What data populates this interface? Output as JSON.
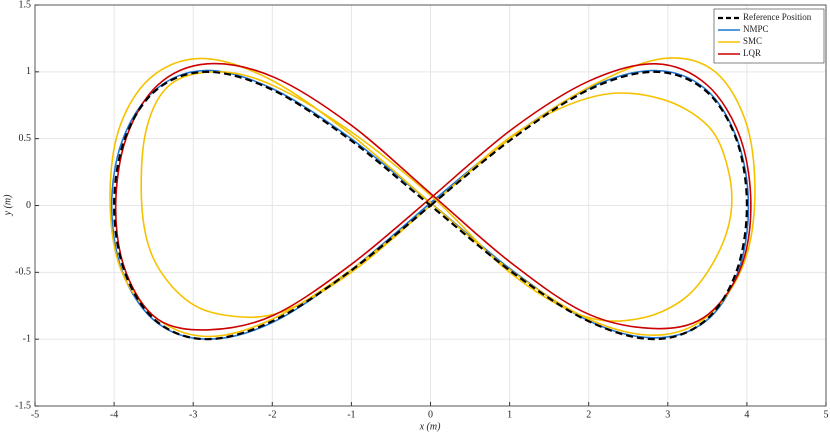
{
  "chart_data": {
    "type": "line",
    "xlabel": "x (m)",
    "ylabel": "y (m)",
    "xlim": [
      -5,
      5
    ],
    "ylim": [
      -1.5,
      1.5
    ],
    "xticks": [
      -5,
      -4,
      -3,
      -2,
      -1,
      0,
      1,
      2,
      3,
      4,
      5
    ],
    "yticks": [
      -1.5,
      -1,
      -0.5,
      0,
      0.5,
      1,
      1.5
    ],
    "grid": true,
    "legend": "upper right",
    "series": [
      {
        "name": "Reference Position",
        "color": "#000000",
        "dashed": true,
        "x": [
          0,
          1.035,
          2,
          2.828,
          3.464,
          3.864,
          4,
          3.864,
          3.464,
          2.828,
          2,
          1.035,
          0,
          -1.035,
          -2,
          -2.828,
          -3.464,
          -3.864,
          -4,
          -3.864,
          -3.464,
          -2.828,
          -2,
          -1.035,
          0
        ],
        "values": [
          0,
          0.5,
          0.866,
          1,
          0.866,
          0.5,
          0,
          -0.5,
          -0.866,
          -1,
          -0.866,
          -0.5,
          0,
          0.5,
          0.866,
          1,
          0.866,
          0.5,
          0,
          -0.5,
          -0.866,
          -1,
          -0.866,
          -0.5,
          0
        ]
      },
      {
        "name": "NMPC",
        "color": "#1f77d4",
        "dashed": false,
        "x": [
          0.02,
          1.04,
          2.01,
          2.84,
          3.48,
          3.88,
          4.02,
          3.88,
          3.47,
          2.82,
          1.99,
          1.02,
          -0.02,
          -1.05,
          -2.02,
          -2.85,
          -3.49,
          -3.9,
          -4.03,
          -3.88,
          -3.45,
          -2.8,
          -1.98,
          -1.02,
          0.02
        ],
        "values": [
          0.03,
          0.52,
          0.88,
          1.01,
          0.87,
          0.49,
          -0.01,
          -0.51,
          -0.87,
          -0.99,
          -0.86,
          -0.48,
          0.03,
          0.52,
          0.88,
          1.01,
          0.86,
          0.48,
          -0.02,
          -0.52,
          -0.88,
          -1,
          -0.87,
          -0.49,
          0.03
        ]
      },
      {
        "name": "SMC",
        "color": "#f5c200",
        "dashed": false,
        "x": [
          0,
          1.05,
          2.05,
          2.95,
          3.6,
          4,
          4.1,
          3.95,
          3.5,
          2.85,
          2,
          1,
          0,
          -1.05,
          -2.05,
          -2.9,
          -3.55,
          -3.95,
          -4.05,
          -3.9,
          -3.45,
          -2.8,
          -2,
          -1,
          0,
          1.1,
          2.1,
          2.9,
          3.5,
          3.75,
          3.8,
          3.6,
          3.2,
          2.6,
          1.9,
          1,
          0.05,
          -1,
          -2,
          -2.7,
          -3.3,
          -3.6,
          -3.65,
          -3.5,
          -3.1,
          -2.6,
          -1.9,
          -1,
          0
        ],
        "values": [
          0,
          0.52,
          0.9,
          1.1,
          1,
          0.6,
          0.05,
          -0.45,
          -0.83,
          -0.97,
          -0.85,
          -0.48,
          0.02,
          0.55,
          0.95,
          1.1,
          0.95,
          0.55,
          0,
          -0.5,
          -0.85,
          -0.98,
          -0.85,
          -0.48,
          0,
          0.55,
          0.82,
          0.8,
          0.6,
          0.3,
          -0.05,
          -0.4,
          -0.7,
          -0.85,
          -0.82,
          -0.5,
          0.05,
          0.55,
          0.9,
          1,
          0.9,
          0.55,
          0,
          -0.4,
          -0.7,
          -0.82,
          -0.8,
          -0.5,
          0
        ]
      },
      {
        "name": "LQR",
        "color": "#cc0000",
        "dashed": false,
        "x": [
          0.05,
          1.05,
          2,
          2.85,
          3.5,
          3.92,
          4.05,
          3.9,
          3.45,
          2.8,
          1.95,
          1,
          0.02,
          -1,
          -1.98,
          -2.82,
          -3.45,
          -3.85,
          -3.98,
          -3.85,
          -3.45,
          -2.8,
          -1.98,
          -1,
          0.05
        ],
        "values": [
          0.08,
          0.58,
          0.93,
          1.06,
          0.9,
          0.5,
          -0.02,
          -0.5,
          -0.84,
          -0.92,
          -0.8,
          -0.42,
          0.08,
          0.6,
          0.96,
          1.06,
          0.9,
          0.5,
          -0.02,
          -0.5,
          -0.85,
          -0.93,
          -0.82,
          -0.44,
          0.08
        ]
      }
    ]
  }
}
